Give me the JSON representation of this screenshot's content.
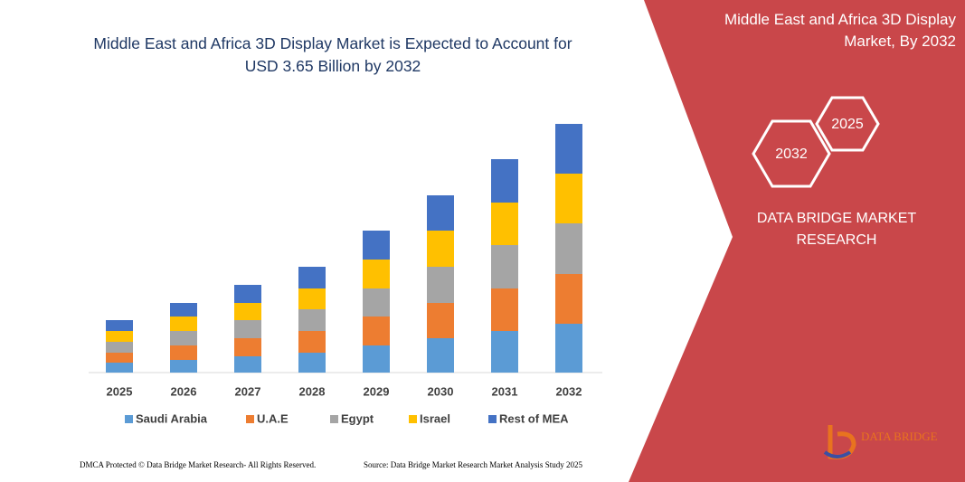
{
  "chart_data": {
    "type": "stacked_bar",
    "title": "Middle East and Africa 3D Display Market is Expected to Account for USD 3.65 Billion by 2032",
    "categories": [
      "2025",
      "2026",
      "2027",
      "2028",
      "2029",
      "2030",
      "2031",
      "2032"
    ],
    "series": [
      {
        "name": "Saudi Arabia",
        "color": "#5b9bd5",
        "values": [
          11,
          14,
          18,
          22,
          30,
          38,
          46,
          54
        ]
      },
      {
        "name": "U.A.E",
        "color": "#ed7d31",
        "values": [
          11,
          16,
          20,
          24,
          32,
          39,
          47,
          55
        ]
      },
      {
        "name": "Egypt",
        "color": "#a5a5a5",
        "values": [
          12,
          16,
          20,
          24,
          31,
          40,
          48,
          56
        ]
      },
      {
        "name": "Israel",
        "color": "#ffc000",
        "values": [
          12,
          16,
          19,
          23,
          32,
          40,
          47,
          55
        ]
      },
      {
        "name": "Rest of MEA",
        "color": "#4472c4",
        "values": [
          12,
          15,
          20,
          24,
          32,
          39,
          48,
          55
        ]
      }
    ]
  },
  "side_panel": {
    "heading": "Middle East and Africa 3D Display Market, By 2032",
    "hex_labels": [
      "2025",
      "2032"
    ],
    "brand": "DATA BRIDGE MARKET RESEARCH"
  },
  "logo": {
    "text": "DATA BRIDGE"
  },
  "footer": {
    "left": "DMCA Protected © Data Bridge Market Research-  All Rights Reserved.",
    "right": "Source: Data Bridge Market Research  Market Analysis Study 2025"
  }
}
